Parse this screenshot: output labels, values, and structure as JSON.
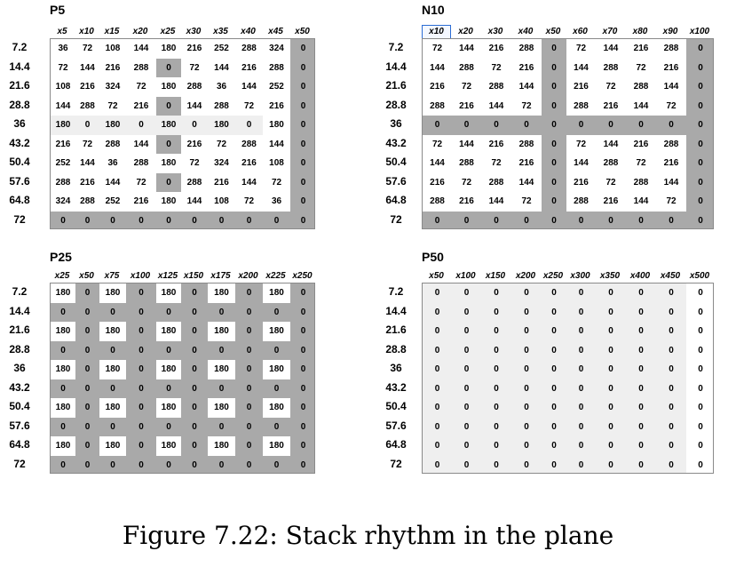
{
  "caption": "Figure 7.22: Stack rhythm in the plane",
  "row_labels": [
    "7.2",
    "14.4",
    "21.6",
    "28.8",
    "36",
    "43.2",
    "50.4",
    "57.6",
    "64.8",
    "72"
  ],
  "tables": [
    {
      "title": "P5",
      "columns": [
        "x5",
        "x10",
        "x15",
        "x20",
        "x25",
        "x30",
        "x35",
        "x40",
        "x45",
        "x50"
      ],
      "selected_column": -1,
      "rows": [
        [
          "36",
          "72",
          "108",
          "144",
          "180",
          "216",
          "252",
          "288",
          "324",
          "0"
        ],
        [
          "72",
          "144",
          "216",
          "288",
          "0",
          "72",
          "144",
          "216",
          "288",
          "0"
        ],
        [
          "108",
          "216",
          "324",
          "72",
          "180",
          "288",
          "36",
          "144",
          "252",
          "0"
        ],
        [
          "144",
          "288",
          "72",
          "216",
          "0",
          "144",
          "288",
          "72",
          "216",
          "0"
        ],
        [
          "180",
          "0",
          "180",
          "0",
          "180",
          "0",
          "180",
          "0",
          "180",
          "0"
        ],
        [
          "216",
          "72",
          "288",
          "144",
          "0",
          "216",
          "72",
          "288",
          "144",
          "0"
        ],
        [
          "252",
          "144",
          "36",
          "288",
          "180",
          "72",
          "324",
          "216",
          "108",
          "0"
        ],
        [
          "288",
          "216",
          "144",
          "72",
          "0",
          "288",
          "216",
          "144",
          "72",
          "0"
        ],
        [
          "324",
          "288",
          "252",
          "216",
          "180",
          "144",
          "108",
          "72",
          "36",
          "0"
        ],
        [
          "0",
          "0",
          "0",
          "0",
          "0",
          "0",
          "0",
          "0",
          "0",
          "0"
        ]
      ],
      "shading": [
        "wwwwwwwwwg",
        "wwwwgwwwwg",
        "wwwwwwwwwg",
        "wwwwgwwwwg",
        "llllllllwg",
        "wwwwgwwwwg",
        "wwwwwwwwwg",
        "wwwwgwwwwg",
        "wwwwwwwwwg",
        "gggggggggg"
      ]
    },
    {
      "title": "N10",
      "columns": [
        "x10",
        "x20",
        "x30",
        "x40",
        "x50",
        "x60",
        "x70",
        "x80",
        "x90",
        "x100"
      ],
      "selected_column": 0,
      "rows": [
        [
          "72",
          "144",
          "216",
          "288",
          "0",
          "72",
          "144",
          "216",
          "288",
          "0"
        ],
        [
          "144",
          "288",
          "72",
          "216",
          "0",
          "144",
          "288",
          "72",
          "216",
          "0"
        ],
        [
          "216",
          "72",
          "288",
          "144",
          "0",
          "216",
          "72",
          "288",
          "144",
          "0"
        ],
        [
          "288",
          "216",
          "144",
          "72",
          "0",
          "288",
          "216",
          "144",
          "72",
          "0"
        ],
        [
          "0",
          "0",
          "0",
          "0",
          "0",
          "0",
          "0",
          "0",
          "0",
          "0"
        ],
        [
          "72",
          "144",
          "216",
          "288",
          "0",
          "72",
          "144",
          "216",
          "288",
          "0"
        ],
        [
          "144",
          "288",
          "72",
          "216",
          "0",
          "144",
          "288",
          "72",
          "216",
          "0"
        ],
        [
          "216",
          "72",
          "288",
          "144",
          "0",
          "216",
          "72",
          "288",
          "144",
          "0"
        ],
        [
          "288",
          "216",
          "144",
          "72",
          "0",
          "288",
          "216",
          "144",
          "72",
          "0"
        ],
        [
          "0",
          "0",
          "0",
          "0",
          "0",
          "0",
          "0",
          "0",
          "0",
          "0"
        ]
      ],
      "shading": [
        "wwwwgwwwwg",
        "wwwwgwwwwg",
        "wwwwgwwwwg",
        "wwwwgwwwwg",
        "gggggggggg",
        "wwwwgwwwwg",
        "wwwwgwwwwg",
        "wwwwgwwwwg",
        "wwwwgwwwwg",
        "gggggggggg"
      ]
    },
    {
      "title": "P25",
      "columns": [
        "x25",
        "x50",
        "x75",
        "x100",
        "x125",
        "x150",
        "x175",
        "x200",
        "x225",
        "x250"
      ],
      "selected_column": -1,
      "rows": [
        [
          "180",
          "0",
          "180",
          "0",
          "180",
          "0",
          "180",
          "0",
          "180",
          "0"
        ],
        [
          "0",
          "0",
          "0",
          "0",
          "0",
          "0",
          "0",
          "0",
          "0",
          "0"
        ],
        [
          "180",
          "0",
          "180",
          "0",
          "180",
          "0",
          "180",
          "0",
          "180",
          "0"
        ],
        [
          "0",
          "0",
          "0",
          "0",
          "0",
          "0",
          "0",
          "0",
          "0",
          "0"
        ],
        [
          "180",
          "0",
          "180",
          "0",
          "180",
          "0",
          "180",
          "0",
          "180",
          "0"
        ],
        [
          "0",
          "0",
          "0",
          "0",
          "0",
          "0",
          "0",
          "0",
          "0",
          "0"
        ],
        [
          "180",
          "0",
          "180",
          "0",
          "180",
          "0",
          "180",
          "0",
          "180",
          "0"
        ],
        [
          "0",
          "0",
          "0",
          "0",
          "0",
          "0",
          "0",
          "0",
          "0",
          "0"
        ],
        [
          "180",
          "0",
          "180",
          "0",
          "180",
          "0",
          "180",
          "0",
          "180",
          "0"
        ],
        [
          "0",
          "0",
          "0",
          "0",
          "0",
          "0",
          "0",
          "0",
          "0",
          "0"
        ]
      ],
      "shading": [
        "wgwgwgwgwg",
        "gggggggggg",
        "wgwgwgwgwg",
        "gggggggggg",
        "wgwgwgwgwg",
        "gggggggggg",
        "wgwgwgwgwg",
        "gggggggggg",
        "wgwgwgwgwg",
        "gggggggggg"
      ]
    },
    {
      "title": "P50",
      "columns": [
        "x50",
        "x100",
        "x150",
        "x200",
        "x250",
        "x300",
        "x350",
        "x400",
        "x450",
        "x500"
      ],
      "selected_column": -1,
      "rows": [
        [
          "0",
          "0",
          "0",
          "0",
          "0",
          "0",
          "0",
          "0",
          "0",
          "0"
        ],
        [
          "0",
          "0",
          "0",
          "0",
          "0",
          "0",
          "0",
          "0",
          "0",
          "0"
        ],
        [
          "0",
          "0",
          "0",
          "0",
          "0",
          "0",
          "0",
          "0",
          "0",
          "0"
        ],
        [
          "0",
          "0",
          "0",
          "0",
          "0",
          "0",
          "0",
          "0",
          "0",
          "0"
        ],
        [
          "0",
          "0",
          "0",
          "0",
          "0",
          "0",
          "0",
          "0",
          "0",
          "0"
        ],
        [
          "0",
          "0",
          "0",
          "0",
          "0",
          "0",
          "0",
          "0",
          "0",
          "0"
        ],
        [
          "0",
          "0",
          "0",
          "0",
          "0",
          "0",
          "0",
          "0",
          "0",
          "0"
        ],
        [
          "0",
          "0",
          "0",
          "0",
          "0",
          "0",
          "0",
          "0",
          "0",
          "0"
        ],
        [
          "0",
          "0",
          "0",
          "0",
          "0",
          "0",
          "0",
          "0",
          "0",
          "0"
        ],
        [
          "0",
          "0",
          "0",
          "0",
          "0",
          "0",
          "0",
          "0",
          "0",
          "0"
        ]
      ],
      "shading": [
        "lllllllllw",
        "lllllllllw",
        "lllllllllw",
        "lllllllllw",
        "lllllllllw",
        "lllllllllw",
        "lllllllllw",
        "lllllllllw",
        "lllllllllw",
        "lllllllllw"
      ]
    }
  ]
}
